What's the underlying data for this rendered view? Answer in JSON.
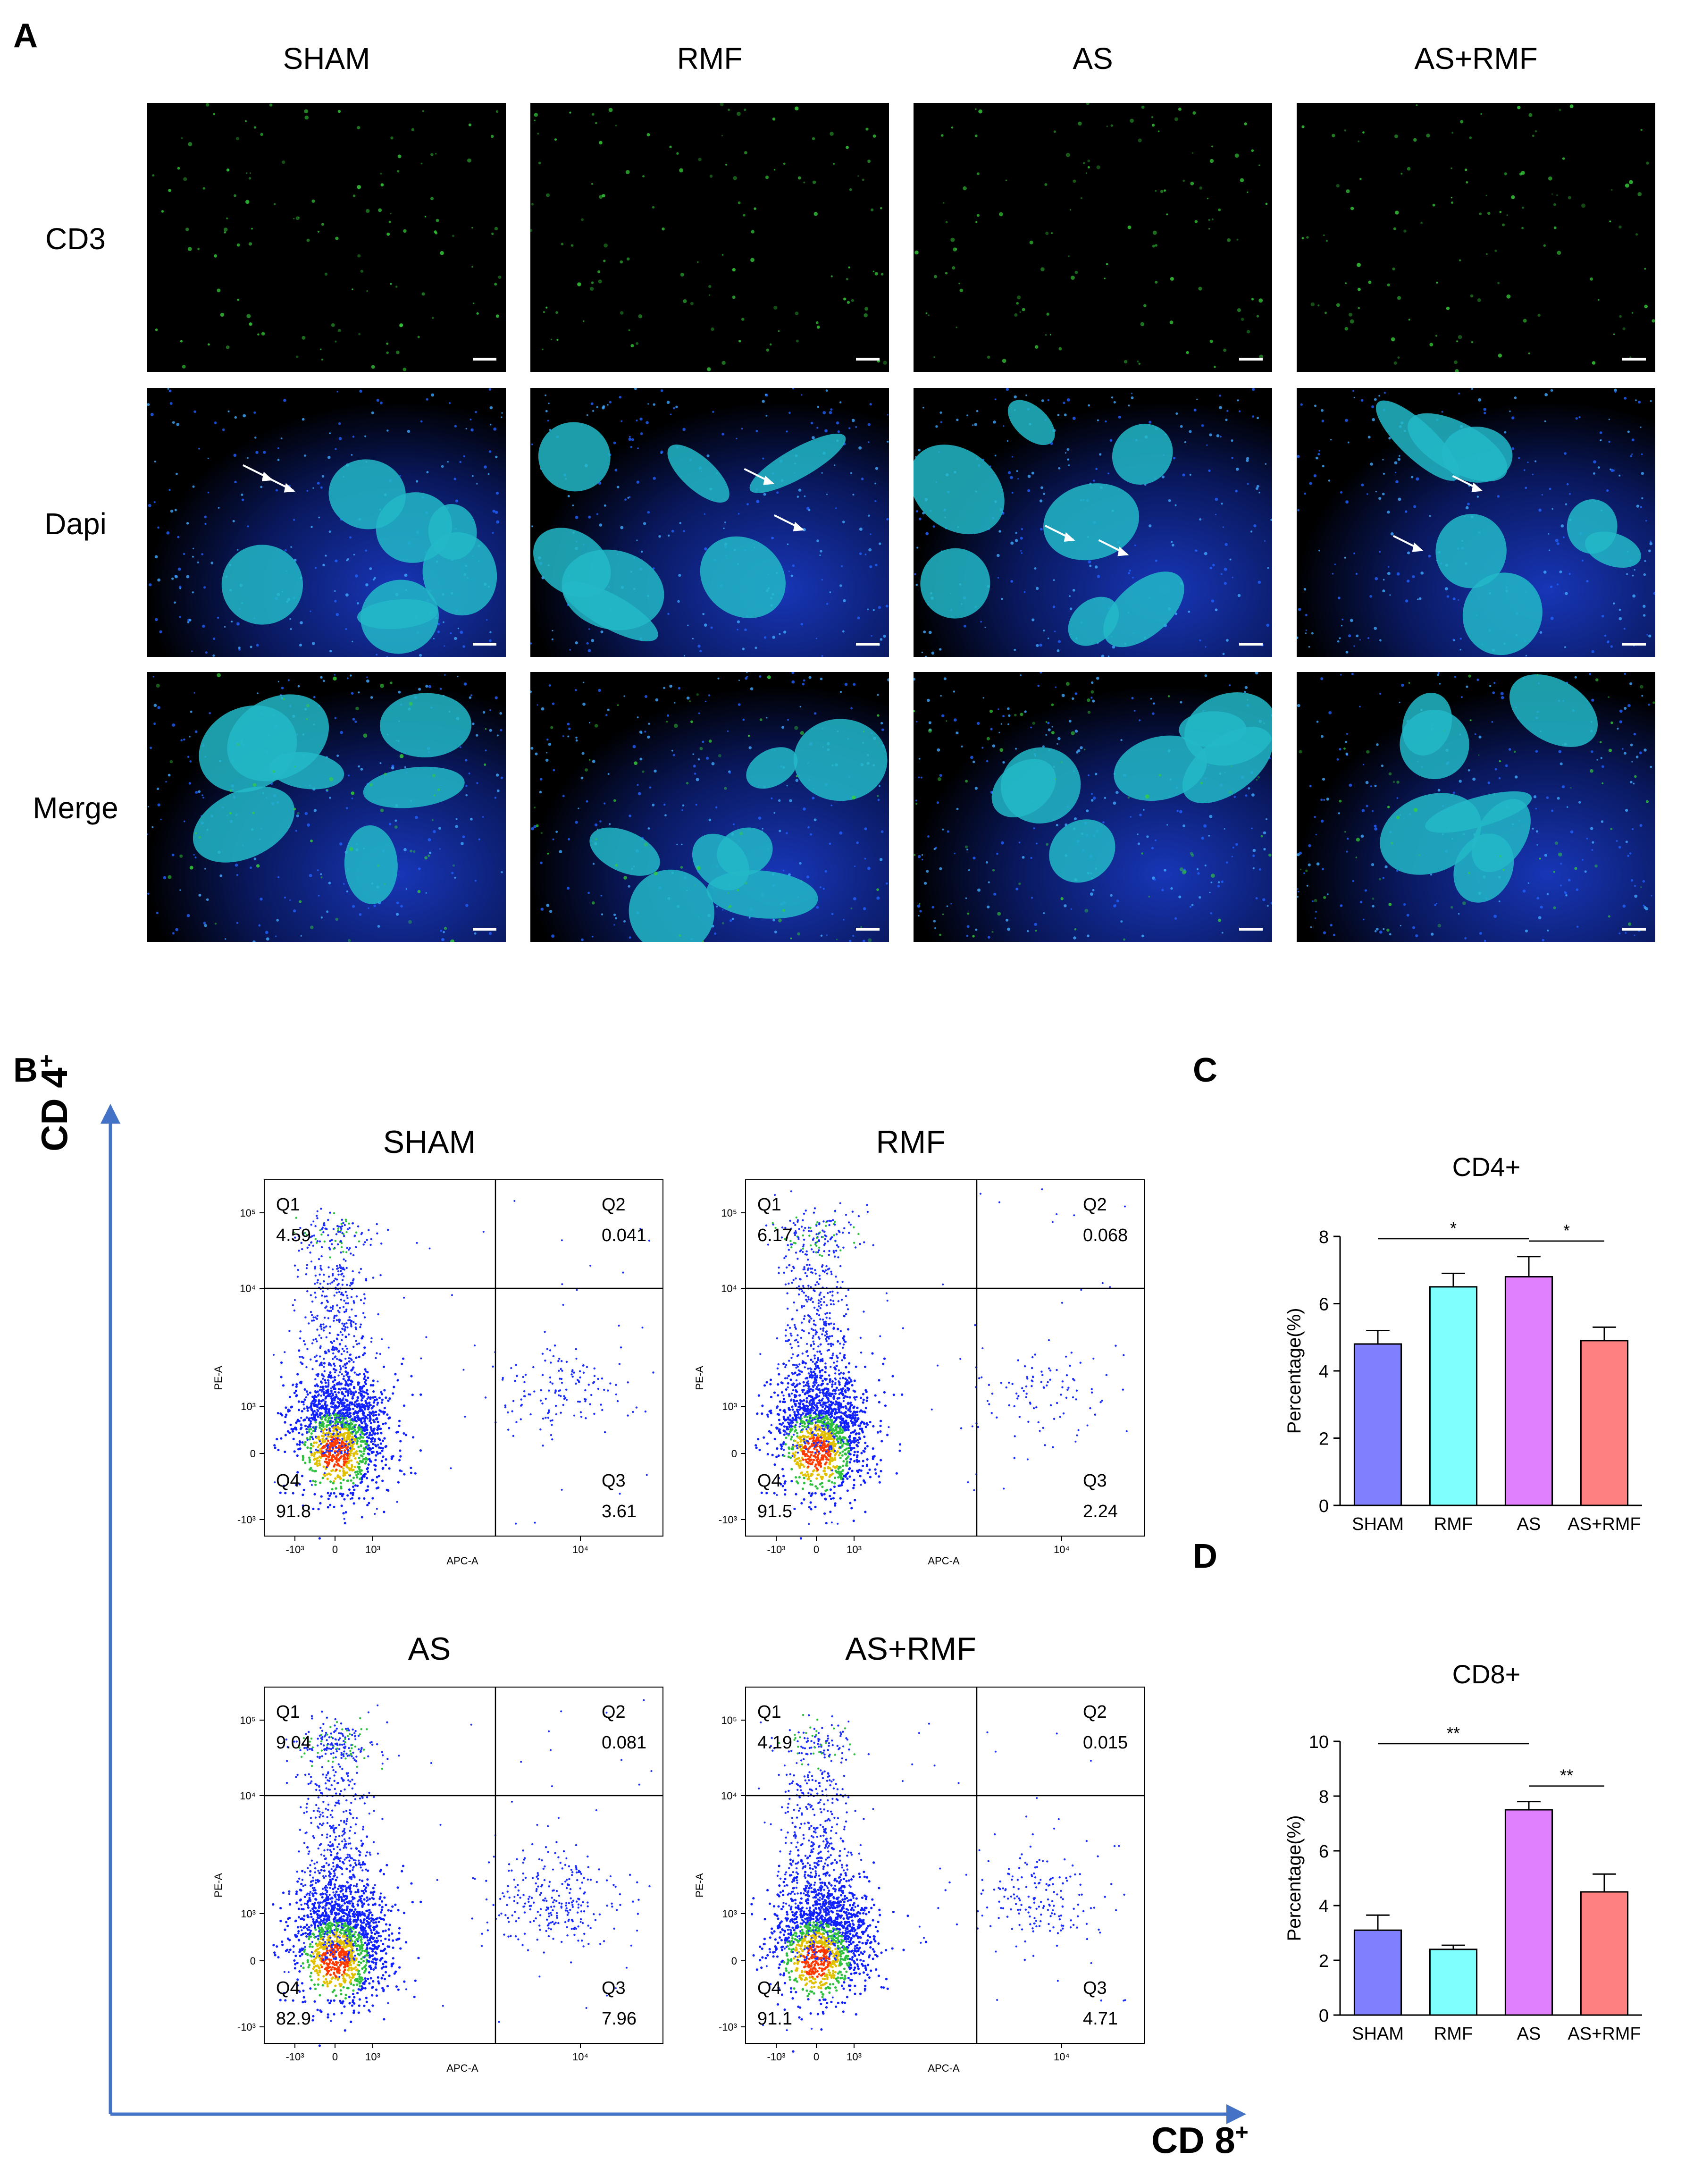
{
  "figure": {
    "panel_labels": {
      "A": "A",
      "B": "B",
      "C": "C",
      "D": "D"
    }
  },
  "panel_a": {
    "columns": [
      "SHAM",
      "RMF",
      "AS",
      "AS+RMF"
    ],
    "rows": [
      "CD3",
      "Dapi",
      "Merge"
    ]
  },
  "panel_b": {
    "y_axis_label": "CD 4",
    "y_axis_sup": "+",
    "x_axis_label": "CD 8",
    "x_axis_sup": "+",
    "plot_y_title": "PE-A",
    "plot_x_title": "APC-A",
    "y_ticks": [
      "10⁵",
      "10⁴",
      "10³",
      "0",
      "-10³"
    ],
    "x_ticks": [
      "-10³",
      "0",
      "10³",
      "10⁴"
    ],
    "plots": [
      {
        "title": "SHAM",
        "q1": "Q1",
        "q1v": "4.59",
        "q2": "Q2",
        "q2v": "0.041",
        "q3": "Q3",
        "q3v": "3.61",
        "q4": "Q4",
        "q4v": "91.8"
      },
      {
        "title": "RMF",
        "q1": "Q1",
        "q1v": "6.17",
        "q2": "Q2",
        "q2v": "0.068",
        "q3": "Q3",
        "q3v": "2.24",
        "q4": "Q4",
        "q4v": "91.5"
      },
      {
        "title": "AS",
        "q1": "Q1",
        "q1v": "9.04",
        "q2": "Q2",
        "q2v": "0.081",
        "q3": "Q3",
        "q3v": "7.96",
        "q4": "Q4",
        "q4v": "82.9"
      },
      {
        "title": "AS+RMF",
        "q1": "Q1",
        "q1v": "4.19",
        "q2": "Q2",
        "q2v": "0.015",
        "q3": "Q3",
        "q3v": "4.71",
        "q4": "Q4",
        "q4v": "91.1"
      }
    ]
  },
  "chart_data": [
    {
      "type": "bar",
      "title": "CD4+",
      "ylabel": "Percentage(%)",
      "categories": [
        "SHAM",
        "RMF",
        "AS",
        "AS+RMF"
      ],
      "values": [
        4.8,
        6.5,
        6.8,
        4.9
      ],
      "errors": [
        0.4,
        0.4,
        0.6,
        0.4
      ],
      "ylim": [
        0,
        8
      ],
      "yticks": [
        0,
        2,
        4,
        6,
        8
      ],
      "bar_colors": [
        "#8080ff",
        "#80ffff",
        "#e080ff",
        "#ff8080"
      ],
      "significance": [
        {
          "from": 0,
          "to": 2,
          "label": "*"
        },
        {
          "from": 2,
          "to": 3,
          "label": "*"
        }
      ]
    },
    {
      "type": "bar",
      "title": "CD8+",
      "ylabel": "Percentage(%)",
      "categories": [
        "SHAM",
        "RMF",
        "AS",
        "AS+RMF"
      ],
      "values": [
        3.1,
        2.4,
        7.5,
        4.5
      ],
      "errors": [
        0.55,
        0.15,
        0.3,
        0.65
      ],
      "ylim": [
        0,
        10
      ],
      "yticks": [
        0,
        2,
        4,
        6,
        8,
        10
      ],
      "bar_colors": [
        "#8080ff",
        "#80ffff",
        "#e080ff",
        "#ff8080"
      ],
      "significance": [
        {
          "from": 0,
          "to": 2,
          "label": "**"
        },
        {
          "from": 2,
          "to": 3,
          "label": "**"
        }
      ]
    }
  ]
}
